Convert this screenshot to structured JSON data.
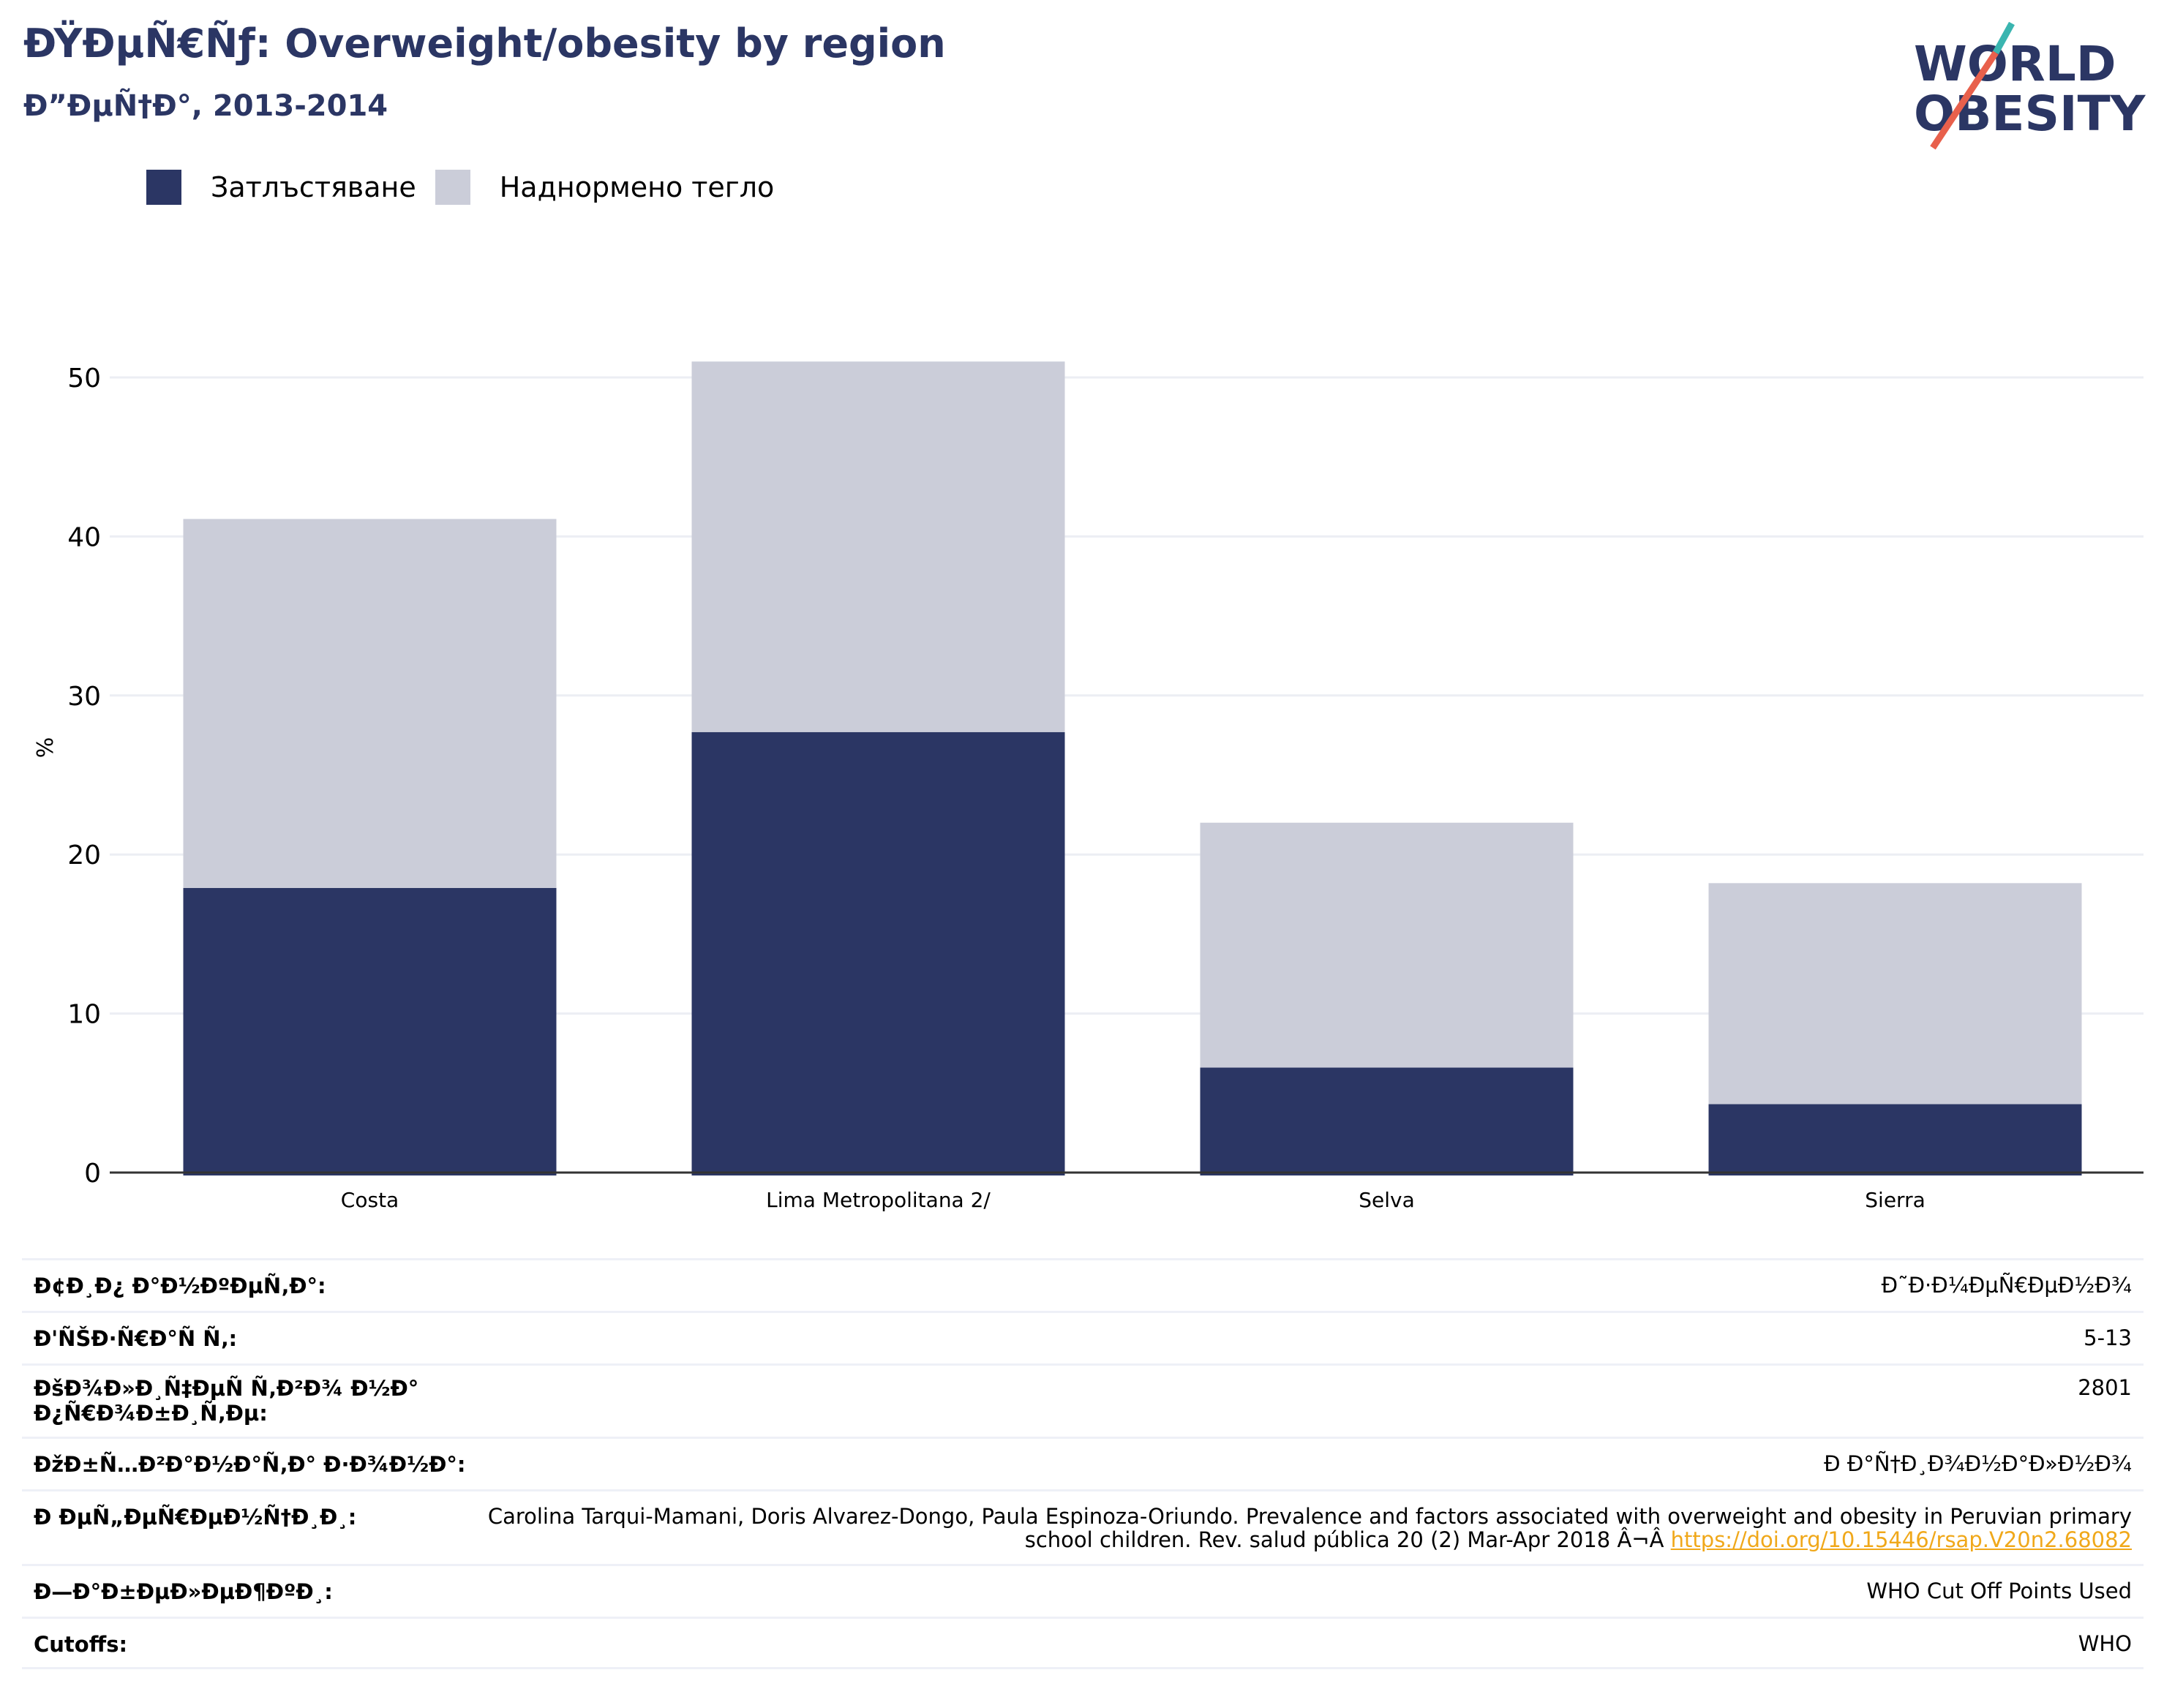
{
  "header": {
    "title": "ÐŸÐµÑ€Ñƒ: Overweight/obesity by region",
    "subtitle": "Ð”ÐµÑ†Ð°, 2013-2014"
  },
  "logo": {
    "line1": "WORLD",
    "line2": "OBESITY",
    "accent_colors": [
      "#3ab5b0",
      "#e8604c"
    ]
  },
  "colors": {
    "obesity": "#2b3664",
    "overweight": "#cbcdd9",
    "grid": "#eceef4",
    "axis": "#333333",
    "link": "#f0a81a"
  },
  "chart_data": {
    "type": "bar",
    "stacked": true,
    "categories": [
      "Costa",
      "Lima Metropolitana 2/",
      "Selva",
      "Sierra"
    ],
    "series": [
      {
        "name": "Затлъстяване",
        "values": [
          17.9,
          27.7,
          6.6,
          4.3
        ]
      },
      {
        "name": "Наднормено тегло",
        "values": [
          23.2,
          23.3,
          15.4,
          13.9
        ]
      }
    ],
    "totals": [
      41.1,
      51.0,
      22.0,
      18.2
    ],
    "ylabel": "%",
    "yticks": [
      0,
      10,
      20,
      30,
      40,
      50
    ],
    "ylim": [
      0,
      55
    ],
    "grid": true,
    "legend": "top-left"
  },
  "info": [
    {
      "label": "Ð¢Ð¸Ð¿ Ð°Ð½ÐºÐµÑ‚Ð°:",
      "value": "Ð˜Ð·Ð¼ÐµÑ€ÐµÐ½Ð¾"
    },
    {
      "label": "Ð'ÑŠÐ·Ñ€Ð°Ñ Ñ‚:",
      "value": "5-13"
    },
    {
      "label": "ÐšÐ¾Ð»Ð¸Ñ‡ÐµÑ Ñ‚Ð²Ð¾ Ð½Ð° Ð¿Ñ€Ð¾Ð±Ð¸Ñ‚Ðµ:",
      "value": "2801"
    },
    {
      "label": "ÐžÐ±Ñ…Ð²Ð°Ð½Ð°Ñ‚Ð° Ð·Ð¾Ð½Ð°:",
      "value": "Ð Ð°Ñ†Ð¸Ð¾Ð½Ð°Ð»Ð½Ð¾"
    },
    {
      "label": "Ð ÐµÑ„ÐµÑ€ÐµÐ½Ñ†Ð¸Ð¸:",
      "value": "Carolina Tarqui-Mamani, Doris Alvarez-Dongo, Paula Espinoza-Oriundo. Prevalence and factors associated with overweight and obesity in Peruvian primary school children. Rev. salud pública 20 (2) Mar-Apr 2018 Â¬Â ",
      "link": "https://doi.org/10.15446/rsap.V20n2.68082"
    },
    {
      "label": "Ð—Ð°Ð±ÐµÐ»ÐµÐ¶ÐºÐ¸:",
      "value": "WHO Cut Off Points Used"
    },
    {
      "label": "Cutoffs:",
      "value": "WHO"
    }
  ]
}
